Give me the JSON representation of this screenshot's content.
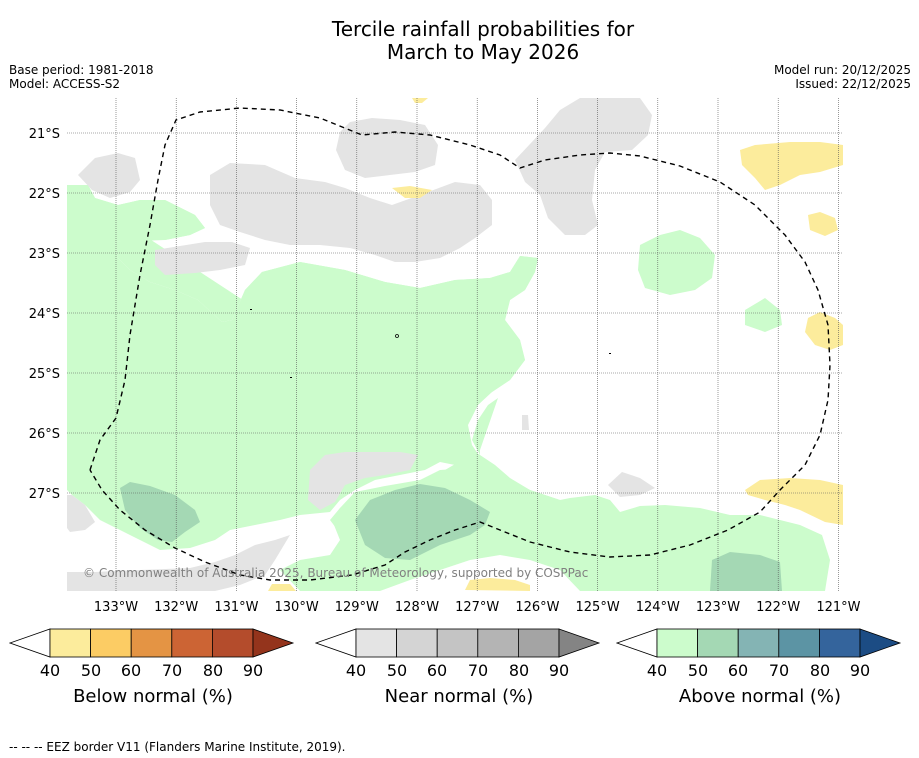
{
  "title": {
    "line1": "Tercile rainfall probabilities for",
    "line2": "March to May 2026"
  },
  "meta_left": {
    "base_period": "Base period: 1981-2018",
    "model": "Model: ACCESS-S2"
  },
  "meta_right": {
    "model_run": "Model run: 20/12/2025",
    "issued": "Issued: 22/12/2025"
  },
  "map": {
    "lat_labels": [
      "21°S",
      "22°S",
      "23°S",
      "24°S",
      "25°S",
      "26°S",
      "27°S"
    ],
    "lon_labels": [
      "133°W",
      "132°W",
      "131°W",
      "130°W",
      "129°W",
      "128°W",
      "127°W",
      "126°W",
      "125°W",
      "124°W",
      "123°W",
      "122°W",
      "121°W"
    ],
    "copyright": "© Commonwealth of Australia 2025, Bureau of Meteorology, supported by COSPPac",
    "colors": {
      "above_40": "#ccfccc",
      "above_50": "#a4d8b4",
      "near_40": "#e4e4e4",
      "below_40": "#fcec9c"
    }
  },
  "colorbars": [
    {
      "label": "Below normal (%)",
      "ticks": [
        "40",
        "50",
        "60",
        "70",
        "80",
        "90"
      ],
      "colors": [
        "#fcec9c",
        "#fccc64",
        "#e49444",
        "#cc6434",
        "#b44c2c",
        "#94341c"
      ]
    },
    {
      "label": "Near normal (%)",
      "ticks": [
        "40",
        "50",
        "60",
        "70",
        "80",
        "90"
      ],
      "colors": [
        "#e4e4e4",
        "#d4d4d4",
        "#c4c4c4",
        "#b4b4b4",
        "#a4a4a4",
        "#848484"
      ]
    },
    {
      "label": "Above normal (%)",
      "ticks": [
        "40",
        "50",
        "60",
        "70",
        "80",
        "90"
      ],
      "colors": [
        "#ccfccc",
        "#a4d8b4",
        "#84b4b4",
        "#5c94a4",
        "#34649c",
        "#1c4c84"
      ]
    }
  ],
  "footnote": "--  --  -- EEZ border V11 (Flanders Marine Institute, 2019)."
}
